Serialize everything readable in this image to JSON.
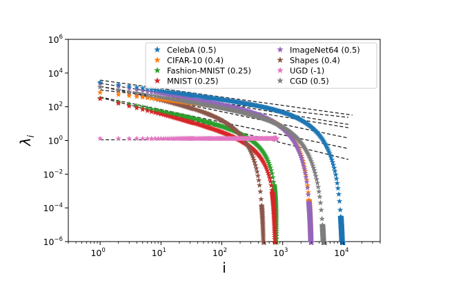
{
  "chart_data": {
    "type": "scatter",
    "title": "",
    "xlabel": "i",
    "ylabel": "λ",
    "ylabel_subscript": "i",
    "xscale": "log",
    "yscale": "log",
    "xlim": [
      0.3,
      40000
    ],
    "ylim": [
      1e-06,
      1000000.0
    ],
    "xticks": [
      {
        "base": "10",
        "exp": "0"
      },
      {
        "base": "10",
        "exp": "1"
      },
      {
        "base": "10",
        "exp": "2"
      },
      {
        "base": "10",
        "exp": "3"
      },
      {
        "base": "10",
        "exp": "4"
      }
    ],
    "yticks": [
      {
        "base": "10",
        "exp": "−6"
      },
      {
        "base": "10",
        "exp": "−4"
      },
      {
        "base": "10",
        "exp": "−2"
      },
      {
        "base": "10",
        "exp": "0"
      },
      {
        "base": "10",
        "exp": "2"
      },
      {
        "base": "10",
        "exp": "4"
      },
      {
        "base": "10",
        "exp": "6"
      }
    ],
    "legend_location": "top-right",
    "fit_lines": "dashed power-law fits, one per dataset",
    "series": [
      {
        "name": "CelebA (0.5)",
        "color": "#1f77b4",
        "n": 10000,
        "lambda1": 2800,
        "slope": 0.5,
        "sharpness": 6,
        "fit_c": 3800,
        "fit_end": 14000
      },
      {
        "name": "CIFAR-10 (0.4)",
        "color": "#ff7f0e",
        "n": 3000,
        "lambda1": 700,
        "slope": 0.4,
        "sharpness": 5,
        "fit_c": 1000,
        "fit_end": 12000
      },
      {
        "name": "Fashion-MNIST (0.25)",
        "color": "#2ca02c",
        "n": 800,
        "lambda1": 320,
        "slope": 0.75,
        "sharpness": 3,
        "fit_c": 380,
        "fit_end": 12000
      },
      {
        "name": "MNIST (0.25)",
        "color": "#d62728",
        "n": 750,
        "lambda1": 300,
        "slope": 0.9,
        "sharpness": 3,
        "fit_c": 350,
        "fit_end": 12000
      },
      {
        "name": "ImageNet64 (0.5)",
        "color": "#9467bd",
        "n": 3000,
        "lambda1": 2500,
        "slope": 0.6,
        "sharpness": 5,
        "fit_c": 2500,
        "fit_end": 12000
      },
      {
        "name": "Shapes (0.4)",
        "color": "#8c564b",
        "n": 500,
        "lambda1": 1500,
        "slope": 0.75,
        "sharpness": 5,
        "fit_c": 1600,
        "fit_end": 12000
      },
      {
        "name": "UGD (-1)",
        "color": "#e377c2",
        "n": 800,
        "lambda1": 1.3,
        "slope": 0.0,
        "sharpness": 12,
        "fit_c": 1.1,
        "fit_end": 800
      },
      {
        "name": "CGD (0.5)",
        "color": "#7f7f7f",
        "n": 5000,
        "lambda1": 1500,
        "slope": 0.6,
        "sharpness": 6,
        "fit_c": 1600,
        "fit_end": 12000
      }
    ]
  }
}
